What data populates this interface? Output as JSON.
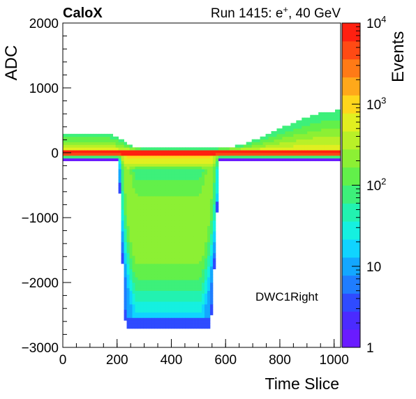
{
  "header": {
    "experiment": "CaloX",
    "run": "Run 1415: e",
    "run_sup": "+",
    "run_tail": ", 40 GeV"
  },
  "chart_data": {
    "type": "heatmap",
    "title": "",
    "xlabel": "Time Slice",
    "ylabel": "ADC",
    "zlabel": "Events",
    "xlim": [
      0,
      1024
    ],
    "ylim": [
      -3000,
      2000
    ],
    "zlim": [
      1,
      10000
    ],
    "z_scale": "log",
    "x_ticks": [
      "0",
      "200",
      "400",
      "600",
      "800",
      "1000"
    ],
    "y_ticks": [
      "−3000",
      "−2000",
      "−1000",
      "0",
      "1000",
      "2000"
    ],
    "z_ticks": [
      {
        "value": 1,
        "base": "1",
        "exp": ""
      },
      {
        "value": 10,
        "base": "10",
        "exp": ""
      },
      {
        "value": 100,
        "base": "10",
        "exp": "2"
      },
      {
        "value": 1000,
        "base": "10",
        "exp": "3"
      },
      {
        "value": 10000,
        "base": "10",
        "exp": "4"
      }
    ],
    "annotation": "DWC1Right",
    "grid": false,
    "colorbar_position": "right",
    "pedestal_band": {
      "y": 0,
      "z": 10000
    },
    "pulse": {
      "start": 215,
      "end": 560,
      "min_adc": -2700,
      "mean_min_adc": -1900
    },
    "upper_baseline": {
      "pre_pulse_max_adc": 300,
      "post_pulse_max_adc": 650
    }
  }
}
